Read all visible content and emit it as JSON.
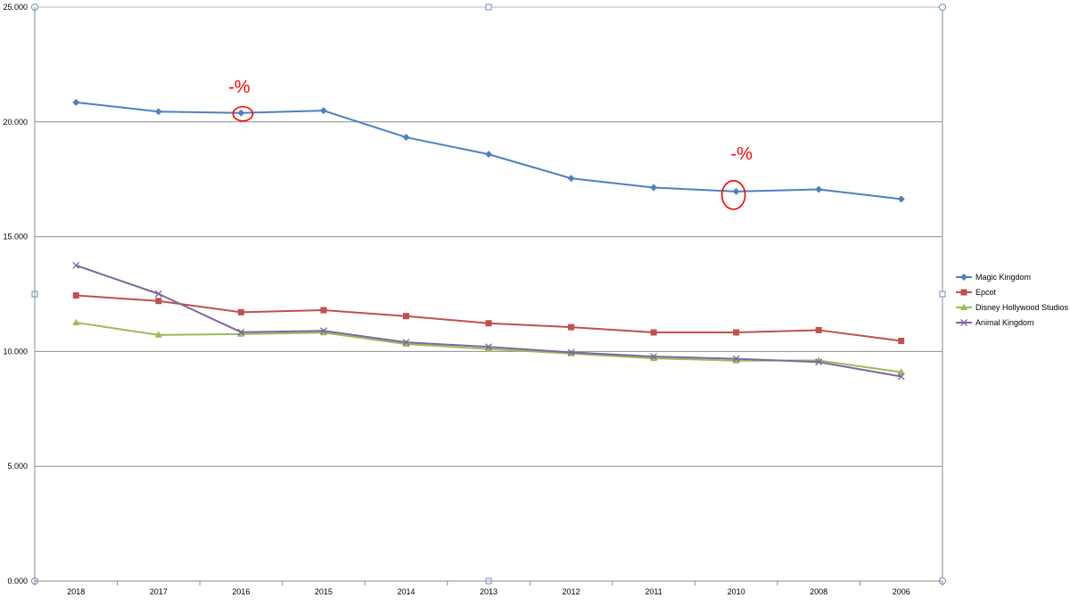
{
  "chart_data": {
    "type": "line",
    "title": "",
    "xlabel": "",
    "ylabel": "",
    "categories": [
      "2018",
      "2017",
      "2016",
      "2015",
      "2014",
      "2013",
      "2012",
      "2011",
      "2010",
      "2008",
      "2006"
    ],
    "y_ticks": [
      "0.000",
      "5.000",
      "10.000",
      "15.000",
      "20.000",
      "25.000"
    ],
    "ylim": [
      0,
      25000
    ],
    "grid": "horizontal",
    "legend": "right",
    "series": [
      {
        "name": "Magic Kingdom",
        "color": "#4f81bd",
        "marker": "diamond",
        "values": [
          20850,
          20450,
          20390,
          20490,
          19330,
          18590,
          17540,
          17140,
          16970,
          17060,
          16640
        ]
      },
      {
        "name": "Epcot",
        "color": "#c0504d",
        "marker": "square",
        "values": [
          12440,
          12200,
          11710,
          11800,
          11540,
          11230,
          11060,
          10830,
          10830,
          10930,
          10460
        ]
      },
      {
        "name": "Disney Hollywood Studios",
        "color": "#9bbb59",
        "marker": "triangle",
        "values": [
          11260,
          10720,
          10760,
          10820,
          10320,
          10110,
          9910,
          9700,
          9600,
          9610,
          9100
        ]
      },
      {
        "name": "Animal Kingdom",
        "color": "#8064a2",
        "marker": "x",
        "values": [
          13750,
          12510,
          10840,
          10900,
          10400,
          10200,
          9960,
          9780,
          9680,
          9540,
          8910
        ]
      }
    ],
    "annotations": [
      {
        "text": "-%",
        "category": "2016",
        "series": "Magic Kingdom",
        "color": "#ff0000"
      },
      {
        "text": "-%",
        "category": "2010",
        "series": "Magic Kingdom",
        "color": "#ff0000"
      }
    ]
  }
}
